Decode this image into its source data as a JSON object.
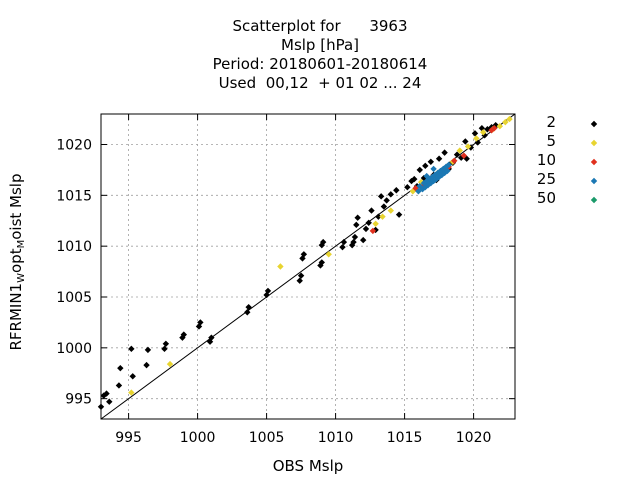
{
  "title": {
    "line1": "Scatterplot for      3963",
    "line2": "Mslp [hPa]",
    "line3": "Period: 20180601-20180614",
    "line4": "Used  00,12  + 01 02 ... 24"
  },
  "chart_data": {
    "type": "scatter",
    "xlabel": "OBS Mslp",
    "ylabel_main": "RFRMIN1",
    "ylabel_sub1": "W",
    "ylabel_mid": "opt",
    "ylabel_sub2": "M",
    "ylabel_end": "oist Mslp",
    "xlim": [
      993,
      1023
    ],
    "ylim": [
      993,
      1023
    ],
    "x_ticks": [
      995,
      1000,
      1005,
      1010,
      1015,
      1020
    ],
    "y_ticks": [
      995,
      1000,
      1005,
      1010,
      1015,
      1020
    ],
    "grid": true,
    "reference_line": "y = x",
    "legend_position": "right, outside plot",
    "series": [
      {
        "name": "2",
        "color": "#000000",
        "points": [
          [
            993.0,
            994.2
          ],
          [
            993.2,
            995.3
          ],
          [
            993.4,
            995.5
          ],
          [
            993.6,
            994.7
          ],
          [
            994.3,
            996.3
          ],
          [
            994.4,
            998.0
          ],
          [
            995.2,
            999.9
          ],
          [
            995.3,
            997.2
          ],
          [
            996.3,
            998.3
          ],
          [
            996.4,
            999.8
          ],
          [
            997.6,
            999.9
          ],
          [
            997.7,
            1000.4
          ],
          [
            998.9,
            1001.0
          ],
          [
            999.0,
            1001.3
          ],
          [
            1000.1,
            1002.1
          ],
          [
            1000.2,
            1002.5
          ],
          [
            1000.9,
            1000.6
          ],
          [
            1001.0,
            1001.0
          ],
          [
            1003.6,
            1003.5
          ],
          [
            1003.7,
            1004.0
          ],
          [
            1005.0,
            1005.2
          ],
          [
            1005.1,
            1005.6
          ],
          [
            1007.4,
            1006.6
          ],
          [
            1007.5,
            1007.1
          ],
          [
            1007.6,
            1008.8
          ],
          [
            1007.7,
            1009.2
          ],
          [
            1008.9,
            1008.1
          ],
          [
            1009.0,
            1008.4
          ],
          [
            1009.0,
            1010.1
          ],
          [
            1009.1,
            1010.4
          ],
          [
            1010.5,
            1009.9
          ],
          [
            1010.6,
            1010.4
          ],
          [
            1011.2,
            1010.1
          ],
          [
            1011.3,
            1010.4
          ],
          [
            1011.4,
            1010.9
          ],
          [
            1011.5,
            1012.1
          ],
          [
            1011.6,
            1012.8
          ],
          [
            1012.0,
            1010.6
          ],
          [
            1012.2,
            1011.7
          ],
          [
            1012.4,
            1012.3
          ],
          [
            1012.6,
            1013.5
          ],
          [
            1012.9,
            1011.6
          ],
          [
            1013.1,
            1012.9
          ],
          [
            1013.3,
            1014.9
          ],
          [
            1013.5,
            1013.9
          ],
          [
            1013.7,
            1014.5
          ],
          [
            1014.0,
            1015.1
          ],
          [
            1014.4,
            1015.5
          ],
          [
            1014.6,
            1013.1
          ],
          [
            1015.2,
            1015.8
          ],
          [
            1015.5,
            1016.4
          ],
          [
            1015.7,
            1016.6
          ],
          [
            1015.9,
            1015.9
          ],
          [
            1016.1,
            1017.5
          ],
          [
            1016.3,
            1015.7
          ],
          [
            1016.4,
            1016.7
          ],
          [
            1016.5,
            1017.9
          ],
          [
            1016.7,
            1016.2
          ],
          [
            1016.9,
            1018.3
          ],
          [
            1017.1,
            1017.0
          ],
          [
            1017.3,
            1016.5
          ],
          [
            1017.5,
            1018.6
          ],
          [
            1017.7,
            1017.3
          ],
          [
            1017.9,
            1019.2
          ],
          [
            1018.2,
            1017.6
          ],
          [
            1018.5,
            1018.2
          ],
          [
            1018.8,
            1019.0
          ],
          [
            1019.1,
            1018.7
          ],
          [
            1019.4,
            1020.3
          ],
          [
            1019.5,
            1018.6
          ],
          [
            1019.8,
            1019.7
          ],
          [
            1020.1,
            1021.1
          ],
          [
            1020.3,
            1020.2
          ],
          [
            1020.6,
            1021.6
          ],
          [
            1020.8,
            1020.9
          ],
          [
            1021.0,
            1021.5
          ],
          [
            1021.3,
            1021.7
          ],
          [
            1021.6,
            1021.9
          ]
        ]
      },
      {
        "name": "5",
        "color": "#e8d430",
        "points": [
          [
            995.2,
            995.6
          ],
          [
            998.0,
            998.4
          ],
          [
            1006.0,
            1008.0
          ],
          [
            1009.5,
            1009.2
          ],
          [
            1012.9,
            1012.2
          ],
          [
            1013.4,
            1012.9
          ],
          [
            1014.0,
            1013.5
          ],
          [
            1015.6,
            1015.4
          ],
          [
            1016.2,
            1016.3
          ],
          [
            1016.8,
            1016.5
          ],
          [
            1017.4,
            1017.2
          ],
          [
            1017.9,
            1017.6
          ],
          [
            1018.5,
            1018.3
          ],
          [
            1019.0,
            1019.4
          ],
          [
            1019.6,
            1019.8
          ],
          [
            1020.2,
            1020.6
          ],
          [
            1020.7,
            1021.2
          ],
          [
            1021.4,
            1021.5
          ],
          [
            1021.9,
            1021.8
          ],
          [
            1022.3,
            1022.2
          ],
          [
            1022.6,
            1022.5
          ]
        ]
      },
      {
        "name": "10",
        "color": "#e0301e",
        "points": [
          [
            1012.7,
            1011.5
          ],
          [
            1015.8,
            1015.7
          ],
          [
            1016.4,
            1016.0
          ],
          [
            1017.0,
            1016.8
          ],
          [
            1017.6,
            1017.3
          ],
          [
            1018.2,
            1017.8
          ],
          [
            1018.6,
            1018.4
          ],
          [
            1019.3,
            1018.9
          ],
          [
            1021.3,
            1021.4
          ],
          [
            1021.5,
            1021.6
          ]
        ]
      },
      {
        "name": "25",
        "color": "#1b78b4",
        "points": [
          [
            1016.0,
            1015.4
          ],
          [
            1016.1,
            1015.9
          ],
          [
            1016.3,
            1015.6
          ],
          [
            1016.4,
            1016.2
          ],
          [
            1016.5,
            1015.8
          ],
          [
            1016.6,
            1016.4
          ],
          [
            1016.7,
            1016.0
          ],
          [
            1016.8,
            1016.6
          ],
          [
            1016.9,
            1016.2
          ],
          [
            1017.0,
            1016.8
          ],
          [
            1017.1,
            1016.4
          ],
          [
            1017.2,
            1017.0
          ],
          [
            1017.3,
            1016.6
          ],
          [
            1017.4,
            1017.2
          ],
          [
            1017.5,
            1016.8
          ],
          [
            1017.6,
            1017.4
          ],
          [
            1017.7,
            1017.0
          ],
          [
            1017.8,
            1017.6
          ],
          [
            1017.9,
            1017.2
          ],
          [
            1018.0,
            1017.8
          ],
          [
            1018.1,
            1017.4
          ],
          [
            1018.2,
            1018.0
          ],
          [
            1017.1,
            1017.6
          ],
          [
            1016.6,
            1016.9
          ]
        ]
      },
      {
        "name": "50",
        "color": "#1a9a6a",
        "points": []
      }
    ]
  }
}
